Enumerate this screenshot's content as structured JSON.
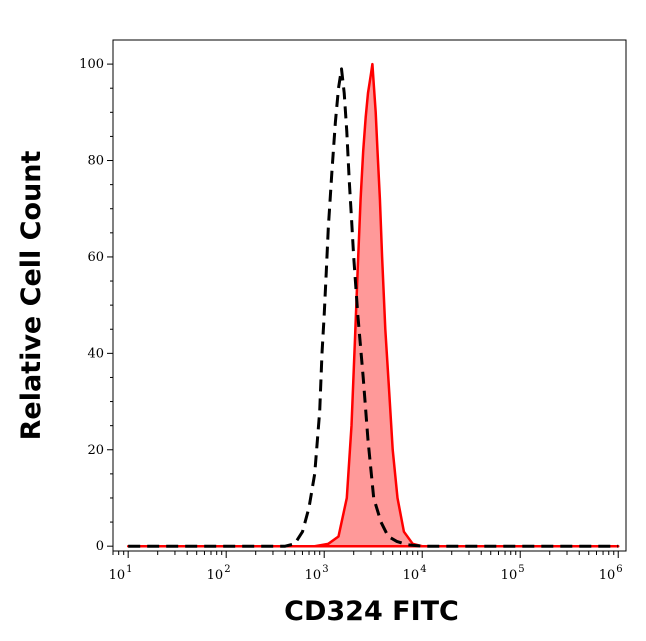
{
  "chart_data": {
    "type": "area",
    "title": "",
    "xlabel": "CD324 FITC",
    "ylabel": "Relative Cell Count",
    "xscale": "log",
    "xlim": [
      7,
      1200000
    ],
    "ylim": [
      -1,
      105
    ],
    "grid": false,
    "x_ticks": [
      {
        "base": "10",
        "exp": "1",
        "value": 10
      },
      {
        "base": "10",
        "exp": "2",
        "value": 100
      },
      {
        "base": "10",
        "exp": "3",
        "value": 1000
      },
      {
        "base": "10",
        "exp": "4",
        "value": 10000
      },
      {
        "base": "10",
        "exp": "5",
        "value": 100000
      },
      {
        "base": "10",
        "exp": "6",
        "value": 1000000
      }
    ],
    "y_ticks": [
      {
        "label": "0",
        "value": 0
      },
      {
        "label": "20",
        "value": 20
      },
      {
        "label": "40",
        "value": 40
      },
      {
        "label": "60",
        "value": 60
      },
      {
        "label": "80",
        "value": 80
      },
      {
        "label": "100",
        "value": 100
      }
    ],
    "series": [
      {
        "style": "filled",
        "color": "#ff0000",
        "fill": "#ff9999",
        "x": [
          10,
          500,
          800,
          1100,
          1400,
          1700,
          1900,
          2050,
          2200,
          2350,
          2500,
          2650,
          2800,
          2900,
          3000,
          3100,
          3200,
          3350,
          3500,
          3700,
          3900,
          4200,
          4600,
          5000,
          5600,
          6500,
          8000,
          10000,
          100000,
          1000000
        ],
        "y": [
          0,
          0,
          0,
          0.5,
          2,
          10,
          25,
          42,
          58,
          72,
          82,
          89,
          94,
          96,
          98,
          100,
          96,
          90,
          82,
          72,
          60,
          45,
          32,
          20,
          10,
          3,
          0.5,
          0,
          0,
          0
        ]
      },
      {
        "style": "dashed",
        "color": "#000000",
        "x": [
          10,
          400,
          500,
          600,
          700,
          800,
          900,
          950,
          1000,
          1050,
          1100,
          1200,
          1300,
          1400,
          1500,
          1600,
          1700,
          1800,
          1900,
          2000,
          2200,
          2500,
          2800,
          3200,
          3800,
          4500,
          5500,
          7000,
          10000,
          100000,
          1000000
        ],
        "y": [
          0,
          0,
          0.5,
          3,
          8,
          15,
          28,
          40,
          48,
          57,
          66,
          78,
          88,
          95,
          99,
          94,
          86,
          76,
          68,
          60,
          48,
          35,
          22,
          10,
          5,
          2,
          1,
          0.3,
          0,
          0,
          0
        ]
      }
    ]
  }
}
